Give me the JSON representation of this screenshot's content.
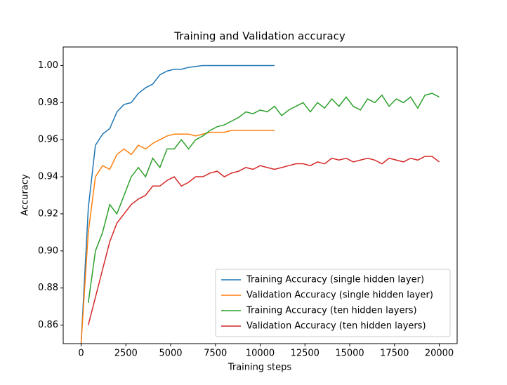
{
  "chart_data": {
    "type": "line",
    "title": "Training and Validation accuracy",
    "x_label": "Training steps",
    "y_label": "Accuracy",
    "xlim": [
      -1000,
      21000
    ],
    "ylim": [
      0.85,
      1.01
    ],
    "xticks": [
      0,
      2500,
      5000,
      7500,
      10000,
      12500,
      15000,
      17500,
      20000
    ],
    "yticks": [
      0.86,
      0.88,
      {
        "value": 0.9,
        "label": "0.90"
      },
      0.92,
      0.94,
      0.96,
      0.98,
      {
        "value": 1,
        "label": "1.00"
      }
    ],
    "legend": "lower right",
    "series": [
      {
        "name": "Training Accuracy (single hidden layer)",
        "color": "#1f77b4",
        "x": [
          0,
          400,
          800,
          1200,
          1600,
          2000,
          2400,
          2800,
          3200,
          3600,
          4000,
          4400,
          4800,
          5200,
          5600,
          6000,
          6400,
          6800,
          7200,
          7600,
          8000,
          8400,
          8800,
          9200,
          9600,
          10000,
          10400,
          10800
        ],
        "values": [
          0.85,
          0.923,
          0.957,
          0.963,
          0.966,
          0.975,
          0.979,
          0.98,
          0.985,
          0.988,
          0.99,
          0.995,
          0.997,
          0.998,
          0.998,
          0.999,
          0.9995,
          1.0,
          1.0,
          1.0,
          1.0,
          1.0,
          1.0,
          1.0,
          1.0,
          1.0,
          1.0,
          1.0
        ]
      },
      {
        "name": "Validation Accuracy (single hidden layer)",
        "color": "#ff7f0e",
        "x": [
          0,
          400,
          800,
          1200,
          1600,
          2000,
          2400,
          2800,
          3200,
          3600,
          4000,
          4400,
          4800,
          5200,
          5600,
          6000,
          6400,
          6800,
          7200,
          7600,
          8000,
          8400,
          8800,
          9200,
          9600,
          10000,
          10400,
          10800
        ],
        "values": [
          0.85,
          0.91,
          0.94,
          0.946,
          0.944,
          0.952,
          0.955,
          0.952,
          0.957,
          0.955,
          0.958,
          0.96,
          0.962,
          0.963,
          0.963,
          0.963,
          0.962,
          0.963,
          0.964,
          0.964,
          0.964,
          0.965,
          0.965,
          0.965,
          0.965,
          0.965,
          0.965,
          0.965
        ]
      },
      {
        "name": "Training Accuracy (ten hidden layers)",
        "color": "#2ca02c",
        "x": [
          400,
          800,
          1200,
          1600,
          2000,
          2400,
          2800,
          3200,
          3600,
          4000,
          4400,
          4800,
          5200,
          5600,
          6000,
          6400,
          6800,
          7200,
          7600,
          8000,
          8400,
          8800,
          9200,
          9600,
          10000,
          10400,
          10800,
          11200,
          11600,
          12000,
          12400,
          12800,
          13200,
          13600,
          14000,
          14400,
          14800,
          15200,
          15600,
          16000,
          16400,
          16800,
          17200,
          17600,
          18000,
          18400,
          18800,
          19200,
          19600,
          20000
        ],
        "values": [
          0.872,
          0.9,
          0.91,
          0.925,
          0.92,
          0.93,
          0.94,
          0.945,
          0.94,
          0.95,
          0.945,
          0.955,
          0.955,
          0.96,
          0.955,
          0.96,
          0.962,
          0.965,
          0.967,
          0.968,
          0.97,
          0.972,
          0.975,
          0.974,
          0.976,
          0.975,
          0.978,
          0.973,
          0.976,
          0.978,
          0.98,
          0.975,
          0.98,
          0.977,
          0.982,
          0.978,
          0.983,
          0.978,
          0.976,
          0.982,
          0.98,
          0.984,
          0.978,
          0.982,
          0.98,
          0.983,
          0.977,
          0.984,
          0.985,
          0.983
        ]
      },
      {
        "name": "Validation Accuracy (ten hidden layers)",
        "color": "#d62728",
        "x": [
          400,
          800,
          1200,
          1600,
          2000,
          2400,
          2800,
          3200,
          3600,
          4000,
          4400,
          4800,
          5200,
          5600,
          6000,
          6400,
          6800,
          7200,
          7600,
          8000,
          8400,
          8800,
          9200,
          9600,
          10000,
          10400,
          10800,
          11200,
          11600,
          12000,
          12400,
          12800,
          13200,
          13600,
          14000,
          14400,
          14800,
          15200,
          15600,
          16000,
          16400,
          16800,
          17200,
          17600,
          18000,
          18400,
          18800,
          19200,
          19600,
          20000
        ],
        "values": [
          0.86,
          0.875,
          0.89,
          0.905,
          0.915,
          0.92,
          0.925,
          0.928,
          0.93,
          0.935,
          0.935,
          0.938,
          0.94,
          0.935,
          0.937,
          0.94,
          0.94,
          0.942,
          0.943,
          0.94,
          0.942,
          0.943,
          0.945,
          0.944,
          0.946,
          0.945,
          0.944,
          0.945,
          0.946,
          0.947,
          0.947,
          0.946,
          0.948,
          0.947,
          0.95,
          0.949,
          0.95,
          0.948,
          0.949,
          0.95,
          0.949,
          0.947,
          0.95,
          0.949,
          0.948,
          0.95,
          0.949,
          0.951,
          0.951,
          0.948
        ]
      }
    ]
  }
}
